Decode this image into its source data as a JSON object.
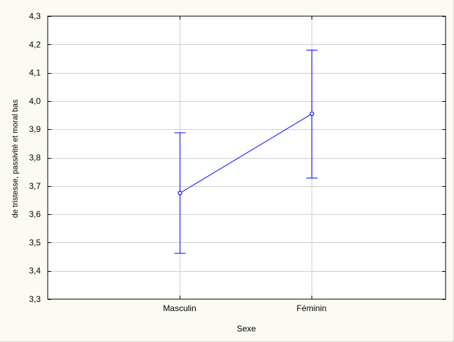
{
  "chart_data": {
    "type": "line",
    "title": "",
    "xlabel": "Sexe",
    "ylabel": "de tristesse, passivité et moral bas",
    "categories": [
      "Masculin",
      "Féminin"
    ],
    "series": [
      {
        "values": [
          3.675,
          3.955
        ],
        "lower": [
          3.462,
          3.728
        ],
        "upper": [
          3.888,
          4.18
        ]
      }
    ],
    "ylim": [
      3.3,
      4.3
    ],
    "yticks": [
      "3,3",
      "3,4",
      "3,5",
      "3,6",
      "3,7",
      "3,8",
      "3,9",
      "4,0",
      "4,1",
      "4,2",
      "4,3"
    ],
    "grid": true,
    "colors": {
      "series": "#0000ff",
      "grid": "#cfcfcf",
      "plot_bg": "#ffffff",
      "frame": "#000000",
      "page_bg": "#fbfbf2"
    }
  }
}
